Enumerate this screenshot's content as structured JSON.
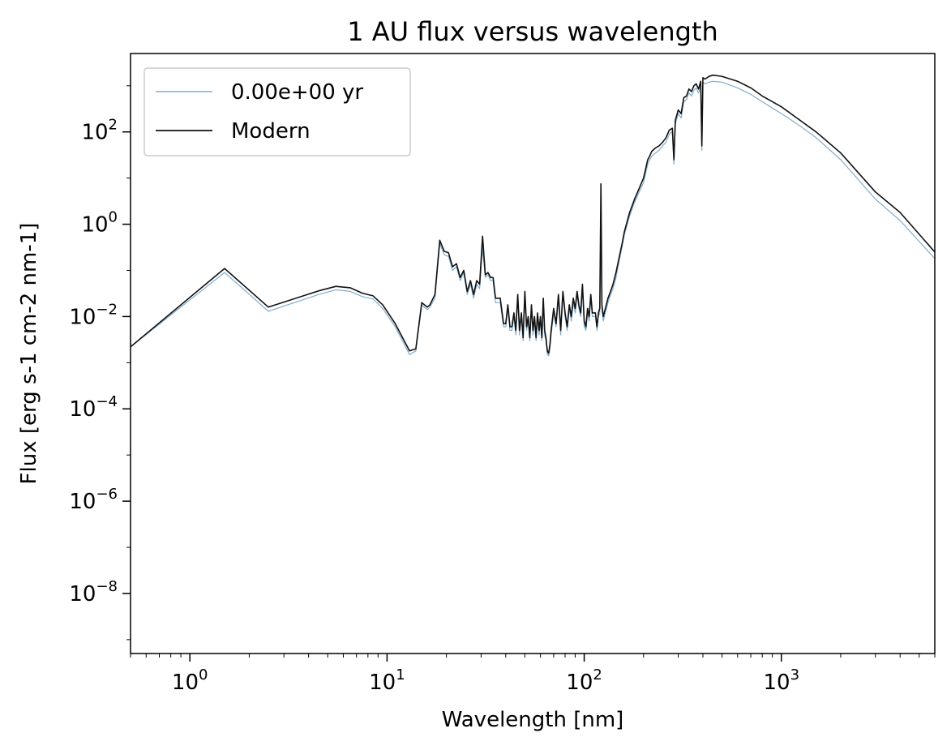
{
  "chart_data": {
    "type": "line",
    "title": "1 AU flux versus wavelength",
    "xlabel": "Wavelength [nm]",
    "ylabel": "Flux [erg s-1 cm-2 nm-1]",
    "xscale": "log",
    "yscale": "log",
    "xlim": [
      0.5,
      6000
    ],
    "ylim": [
      5e-10,
      5000
    ],
    "x_ticks": [
      {
        "value": 1,
        "base": "10",
        "exp": "0"
      },
      {
        "value": 10,
        "base": "10",
        "exp": "1"
      },
      {
        "value": 100,
        "base": "10",
        "exp": "2"
      },
      {
        "value": 1000,
        "base": "10",
        "exp": "3"
      }
    ],
    "y_ticks": [
      {
        "value": 1e-08,
        "base": "10",
        "exp": "−8"
      },
      {
        "value": 1e-06,
        "base": "10",
        "exp": "−6"
      },
      {
        "value": 0.0001,
        "base": "10",
        "exp": "−4"
      },
      {
        "value": 0.01,
        "base": "10",
        "exp": "−2"
      },
      {
        "value": 1,
        "base": "10",
        "exp": "0"
      },
      {
        "value": 100,
        "base": "10",
        "exp": "2"
      }
    ],
    "grid": false,
    "legend_position": "top-left",
    "series": [
      {
        "name": "0.00e+00 yr",
        "color": "#7fadd0",
        "x": [
          0.5,
          1.5,
          2.5,
          4.5,
          5.5,
          6.5,
          7.5,
          8.5,
          9.5,
          11,
          13,
          14,
          15,
          16,
          16.5,
          17.5,
          18.5,
          19.5,
          20.5,
          21.5,
          22.5,
          23.5,
          24.5,
          25.5,
          26.5,
          27.5,
          28.5,
          29.5,
          30.5,
          31.5,
          32.5,
          33.5,
          34.5,
          35.5,
          36.5,
          37.5,
          39,
          40,
          41,
          42,
          43,
          44,
          45,
          46,
          47,
          48,
          49,
          50,
          51,
          52,
          53,
          54,
          55,
          56,
          57,
          58,
          59,
          60,
          61,
          62,
          63,
          64,
          65,
          66,
          67,
          68,
          70,
          72,
          74,
          76,
          78,
          80,
          82,
          84,
          86,
          88,
          90,
          92,
          94,
          96,
          98,
          100,
          102,
          104,
          106,
          108,
          110,
          112,
          114,
          116,
          118,
          120,
          121.6,
          123,
          125,
          128,
          132,
          136,
          140,
          145,
          150,
          155,
          160,
          170,
          180,
          190,
          200,
          210,
          215,
          220,
          230,
          240,
          250,
          260,
          270,
          280,
          285,
          290,
          300,
          310,
          320,
          330,
          340,
          350,
          360,
          370,
          380,
          390,
          395,
          400,
          410,
          430,
          450,
          500,
          600,
          700,
          800,
          1000,
          1200,
          1500,
          2000,
          3000,
          4000,
          6000
        ],
        "values": [
          0.0022,
          0.09,
          0.013,
          0.03,
          0.038,
          0.035,
          0.027,
          0.024,
          0.015,
          0.006,
          0.0015,
          0.0018,
          0.018,
          0.014,
          0.016,
          0.025,
          0.38,
          0.22,
          0.2,
          0.1,
          0.12,
          0.06,
          0.09,
          0.03,
          0.05,
          0.025,
          0.05,
          0.04,
          0.3,
          0.07,
          0.08,
          0.06,
          0.06,
          0.02,
          0.02,
          0.02,
          0.006,
          0.006,
          0.015,
          0.005,
          0.005,
          0.01,
          0.004,
          0.025,
          0.004,
          0.01,
          0.003,
          0.03,
          0.005,
          0.008,
          0.003,
          0.015,
          0.004,
          0.008,
          0.003,
          0.01,
          0.004,
          0.008,
          0.003,
          0.02,
          0.004,
          0.003,
          0.0015,
          0.0014,
          0.002,
          0.004,
          0.012,
          0.006,
          0.025,
          0.004,
          0.03,
          0.01,
          0.005,
          0.015,
          0.008,
          0.02,
          0.012,
          0.03,
          0.015,
          0.01,
          0.04,
          0.006,
          0.005,
          0.012,
          0.008,
          0.025,
          0.01,
          0.01,
          0.01,
          0.005,
          0.01,
          0.012,
          0.8,
          0.015,
          0.008,
          0.012,
          0.02,
          0.03,
          0.04,
          0.07,
          0.15,
          0.3,
          0.6,
          1.5,
          3,
          5,
          8,
          20,
          25,
          30,
          35,
          40,
          50,
          60,
          90,
          100,
          20,
          150,
          250,
          200,
          450,
          500,
          700,
          600,
          800,
          900,
          700,
          1000,
          40,
          1200,
          1100,
          1200,
          1250,
          1200,
          900,
          650,
          450,
          250,
          150,
          75,
          25,
          3.5,
          1.2,
          0.18
        ],
        "line_width": 1.2
      },
      {
        "name": "Modern",
        "color": "#111111",
        "x": [
          0.5,
          1.5,
          2.5,
          4.5,
          5.5,
          6.5,
          7.5,
          8.5,
          9.5,
          11,
          13,
          14,
          15,
          16,
          16.5,
          17.5,
          18.5,
          19.5,
          20.5,
          21.5,
          22.5,
          23.5,
          24.5,
          25.5,
          26.5,
          27.5,
          28.5,
          29.5,
          30.5,
          31.5,
          32.5,
          33.5,
          34.5,
          35.5,
          36.5,
          37.5,
          39,
          40,
          41,
          42,
          43,
          44,
          45,
          46,
          47,
          48,
          49,
          50,
          51,
          52,
          53,
          54,
          55,
          56,
          57,
          58,
          59,
          60,
          61,
          62,
          63,
          64,
          65,
          66,
          67,
          68,
          70,
          72,
          74,
          76,
          78,
          80,
          82,
          84,
          86,
          88,
          90,
          92,
          94,
          96,
          98,
          100,
          102,
          104,
          106,
          108,
          110,
          112,
          114,
          116,
          118,
          120,
          121.6,
          123,
          125,
          128,
          132,
          136,
          140,
          145,
          150,
          155,
          160,
          170,
          180,
          190,
          200,
          210,
          215,
          220,
          230,
          240,
          250,
          260,
          270,
          280,
          285,
          290,
          300,
          310,
          320,
          330,
          340,
          350,
          360,
          370,
          380,
          390,
          395,
          400,
          410,
          430,
          450,
          500,
          600,
          700,
          800,
          1000,
          1200,
          1500,
          2000,
          3000,
          4000,
          6000
        ],
        "values": [
          0.0022,
          0.11,
          0.016,
          0.036,
          0.045,
          0.042,
          0.032,
          0.028,
          0.018,
          0.007,
          0.0018,
          0.002,
          0.02,
          0.016,
          0.018,
          0.03,
          0.45,
          0.26,
          0.24,
          0.12,
          0.14,
          0.07,
          0.1,
          0.035,
          0.06,
          0.03,
          0.06,
          0.05,
          0.55,
          0.08,
          0.09,
          0.07,
          0.07,
          0.025,
          0.025,
          0.025,
          0.007,
          0.007,
          0.018,
          0.006,
          0.006,
          0.012,
          0.005,
          0.03,
          0.005,
          0.012,
          0.0035,
          0.035,
          0.006,
          0.01,
          0.0035,
          0.018,
          0.005,
          0.01,
          0.0035,
          0.012,
          0.005,
          0.01,
          0.0035,
          0.025,
          0.005,
          0.0035,
          0.0018,
          0.0016,
          0.0025,
          0.005,
          0.015,
          0.007,
          0.03,
          0.005,
          0.035,
          0.012,
          0.006,
          0.018,
          0.01,
          0.025,
          0.015,
          0.035,
          0.018,
          0.012,
          0.05,
          0.008,
          0.006,
          0.015,
          0.01,
          0.03,
          0.012,
          0.012,
          0.012,
          0.006,
          0.012,
          0.015,
          7.5,
          0.018,
          0.01,
          0.015,
          0.025,
          0.035,
          0.05,
          0.09,
          0.18,
          0.35,
          0.7,
          1.8,
          3.5,
          6,
          10,
          25,
          30,
          38,
          45,
          50,
          60,
          75,
          110,
          120,
          25,
          180,
          300,
          250,
          550,
          600,
          850,
          750,
          1000,
          1100,
          850,
          1250,
          50,
          1500,
          1400,
          1600,
          1700,
          1600,
          1250,
          900,
          600,
          350,
          200,
          100,
          35,
          5,
          1.8,
          0.25
        ],
        "line_width": 1.6
      }
    ]
  }
}
